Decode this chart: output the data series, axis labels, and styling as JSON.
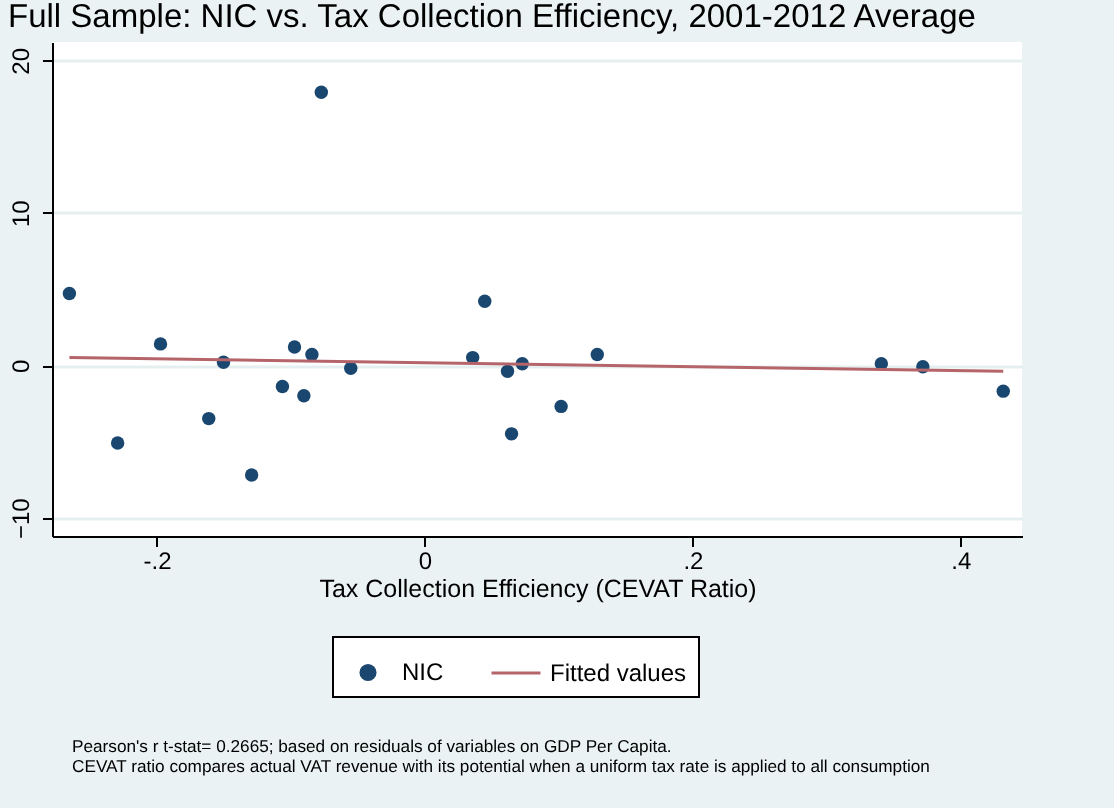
{
  "chart_data": {
    "type": "scatter",
    "title": "Full Sample: NIC vs. Tax Collection Efficiency, 2001-2012 Average",
    "xlabel": "Tax Collection Efficiency (CEVAT Ratio)",
    "xlim": [
      -0.278,
      0.446
    ],
    "ylim": [
      -11.2,
      21.2
    ],
    "xticks": [
      {
        "value": -0.2,
        "label": "-.2"
      },
      0,
      {
        "value": 0.2,
        "label": ".2"
      },
      {
        "value": 0.4,
        "label": ".4"
      }
    ],
    "yticks": [
      -10,
      0,
      10,
      20
    ],
    "grid": "y",
    "legend": "bottom",
    "series": [
      {
        "name": "NIC",
        "marker": "circle",
        "color": "#1a476f",
        "x": [
          -0.265,
          -0.229,
          -0.197,
          -0.161,
          -0.15,
          -0.129,
          -0.106,
          -0.097,
          -0.09,
          -0.084,
          -0.077,
          -0.055,
          0.036,
          0.045,
          0.062,
          0.065,
          0.073,
          0.102,
          0.129,
          0.341,
          0.372,
          0.432
        ],
        "values": [
          4.7,
          -5.1,
          1.4,
          -3.5,
          0.2,
          -7.2,
          -1.4,
          1.2,
          -2.0,
          0.7,
          17.9,
          -0.2,
          0.5,
          4.2,
          -0.4,
          -4.5,
          0.1,
          -2.7,
          0.7,
          0.1,
          -0.1,
          -1.7
        ]
      },
      {
        "name": "Fitted values",
        "type": "line",
        "color": "#b5656a",
        "x": [
          -0.265,
          0.432
        ],
        "values": [
          0.5,
          -0.4
        ]
      }
    ],
    "annotations": [
      "Pearson's r t-stat= 0.2665; based on residuals of variables on GDP Per Capita.",
      "CEVAT ratio compares actual VAT revenue with its potential when a uniform tax rate is applied to all consumption"
    ]
  }
}
